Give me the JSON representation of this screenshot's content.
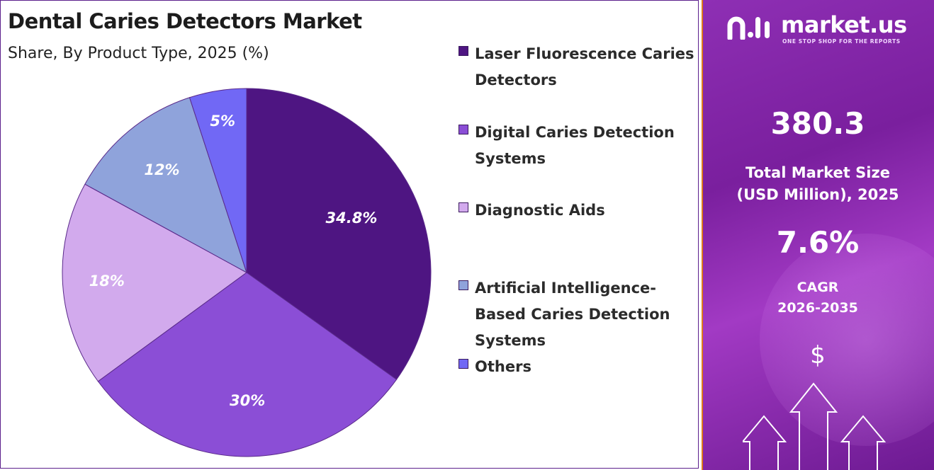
{
  "header": {
    "title": "Dental Caries Detectors Market",
    "subtitle": "Share, By Product Type, 2025 (%)"
  },
  "chart_data": {
    "type": "pie",
    "title": "Dental Caries Detectors Market",
    "subtitle": "Share, By Product Type, 2025 (%)",
    "legend_position": "right",
    "slices": [
      {
        "name": "Laser Fluorescence Caries Detectors",
        "value": 34.8,
        "label": "34.8%",
        "color": "#4e1582"
      },
      {
        "name": "Digital Caries Detection Systems",
        "value": 30,
        "label": "30%",
        "color": "#8b4ed6"
      },
      {
        "name": "Diagnostic Aids",
        "value": 18,
        "label": "18%",
        "color": "#d2aaed"
      },
      {
        "name": "Artificial Intelligence-Based Caries Detection Systems",
        "value": 12,
        "label": "12%",
        "color": "#8fa3db"
      },
      {
        "name": "Others",
        "value": 5,
        "label": "5%",
        "color": "#7168f5"
      }
    ]
  },
  "legend": {
    "items": [
      {
        "label": "Laser Fluorescence Caries Detectors",
        "color": "#4e1582"
      },
      {
        "label": "Digital Caries Detection Systems",
        "color": "#8b4ed6"
      },
      {
        "label": "Diagnostic Aids",
        "color": "#d2aaed"
      },
      {
        "label": "Artificial Intelligence-Based Caries Detection Systems",
        "color": "#8fa3db"
      },
      {
        "label": "Others",
        "color": "#7168f5"
      }
    ]
  },
  "brand": {
    "name": "market.us",
    "tagline": "ONE STOP SHOP FOR THE REPORTS"
  },
  "stats": {
    "market_size_value": "380.3",
    "market_size_label_line1": "Total Market Size",
    "market_size_label_line2": "(USD Million), 2025",
    "cagr_value": "7.6%",
    "cagr_label_line1": "CAGR",
    "cagr_label_line2": "2026-2035"
  },
  "icons": {
    "dollar": "$",
    "growth": "growth-arrows-icon"
  }
}
